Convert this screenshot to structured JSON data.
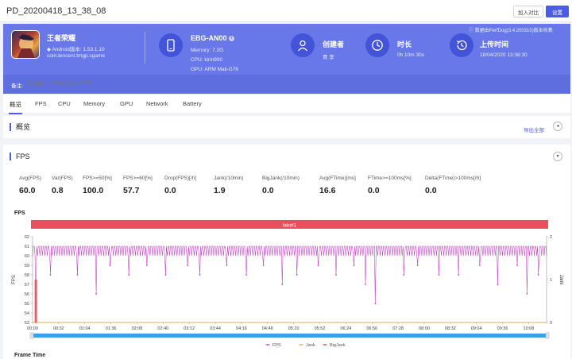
{
  "window": {
    "title": "PD_20200418_13_38_08",
    "compare_label": "加入对比",
    "settings_label": "设置"
  },
  "app": {
    "name": "王者荣耀",
    "android_version": "Android版本: 1.53.1.10",
    "package": "com.tencent.tmgp.sgame"
  },
  "device": {
    "name": "EBG-AN00",
    "memory": "Memory: 7.2G",
    "cpu": "CPU: kirin990",
    "gpu": "GPU: ARM Mali-G76"
  },
  "creator": {
    "label": "创建者",
    "value": "青 李"
  },
  "duration": {
    "label": "时长",
    "value": "0h 10m 30s"
  },
  "upload": {
    "label": "上传时间",
    "value": "18/04/2020 13:38:30"
  },
  "data_source": "数据由PerfDog(3.4.200310)版本收集",
  "note": {
    "label": "备注:",
    "placeholder": "添加备注，不超过200个字符"
  },
  "tabs": [
    "概览",
    "FPS",
    "CPU",
    "Memory",
    "GPU",
    "Network",
    "Battery"
  ],
  "overview": {
    "title": "概览",
    "export_label": "导出全部"
  },
  "fps_section": {
    "title": "FPS",
    "metrics": [
      {
        "label": "Avg(FPS)",
        "value": "60.0"
      },
      {
        "label": "Var(FPS)",
        "value": "0.8"
      },
      {
        "label": "FPS>=50[%]",
        "value": "100.0"
      },
      {
        "label": "FPS>=60[%]",
        "value": "57.7"
      },
      {
        "label": "Drop(FPS)[/h]",
        "value": "0.0"
      },
      {
        "label": "Jank(/10min)",
        "value": "1.9"
      },
      {
        "label": "BigJank(/10min)",
        "value": "0.0"
      },
      {
        "label": "Avg(FTime)[ms]",
        "value": "16.6"
      },
      {
        "label": "FTime>=100ms[%]",
        "value": "0.0"
      },
      {
        "label": "Delta(FTime)>100ms[/h]",
        "value": "0.0"
      }
    ],
    "chart_title": "FPS",
    "frame_time_title": "Frame Time"
  },
  "colors": {
    "accent": "#4b5ce6",
    "banner": "#6878e8",
    "fps_line": "#c03cc0",
    "jank": "#f0a030",
    "bigjank": "#e05050",
    "label_band": "#e8505e",
    "scroll_bar": "#3aa0e8"
  },
  "chart_data": {
    "type": "line",
    "title": "FPS",
    "band_label": "label1",
    "ylabel": "FPS",
    "y2label": "Jank",
    "ylim": [
      53,
      62
    ],
    "y2lim": [
      0,
      2
    ],
    "yticks": [
      "53",
      "54",
      "55",
      "56",
      "57",
      "58",
      "59",
      "60",
      "61",
      "62"
    ],
    "y2ticks": [
      "0",
      "1",
      "2"
    ],
    "xticks": [
      "00:00",
      "00:32",
      "01:04",
      "01:36",
      "02:08",
      "02:40",
      "03:12",
      "03:44",
      "04:16",
      "04:48",
      "05:20",
      "05:52",
      "06:24",
      "06:56",
      "07:28",
      "08:00",
      "08:32",
      "09:04",
      "09:36",
      "10:08"
    ],
    "duration_s": 630,
    "fps_baseline": 60,
    "fps_high": 61,
    "dips": [
      {
        "t": 4,
        "v": 53
      },
      {
        "t": 22,
        "v": 58
      },
      {
        "t": 55,
        "v": 58
      },
      {
        "t": 78,
        "v": 56
      },
      {
        "t": 95,
        "v": 59
      },
      {
        "t": 118,
        "v": 58
      },
      {
        "t": 140,
        "v": 59
      },
      {
        "t": 163,
        "v": 58
      },
      {
        "t": 190,
        "v": 59
      },
      {
        "t": 205,
        "v": 58
      },
      {
        "t": 238,
        "v": 59
      },
      {
        "t": 262,
        "v": 58
      },
      {
        "t": 283,
        "v": 59
      },
      {
        "t": 306,
        "v": 57
      },
      {
        "t": 324,
        "v": 58
      },
      {
        "t": 350,
        "v": 59
      },
      {
        "t": 372,
        "v": 58
      },
      {
        "t": 394,
        "v": 59
      },
      {
        "t": 408,
        "v": 57
      },
      {
        "t": 420,
        "v": 55
      },
      {
        "t": 455,
        "v": 58
      },
      {
        "t": 472,
        "v": 59
      },
      {
        "t": 498,
        "v": 58
      },
      {
        "t": 522,
        "v": 58
      },
      {
        "t": 548,
        "v": 59
      },
      {
        "t": 570,
        "v": 57
      },
      {
        "t": 594,
        "v": 59
      },
      {
        "t": 606,
        "v": 56
      },
      {
        "t": 620,
        "v": 58
      }
    ],
    "jank": [
      {
        "t": 4,
        "v": 1
      }
    ],
    "legend": [
      "FPS",
      "Jank",
      "BigJank"
    ],
    "legend_position": "bottom-center"
  }
}
